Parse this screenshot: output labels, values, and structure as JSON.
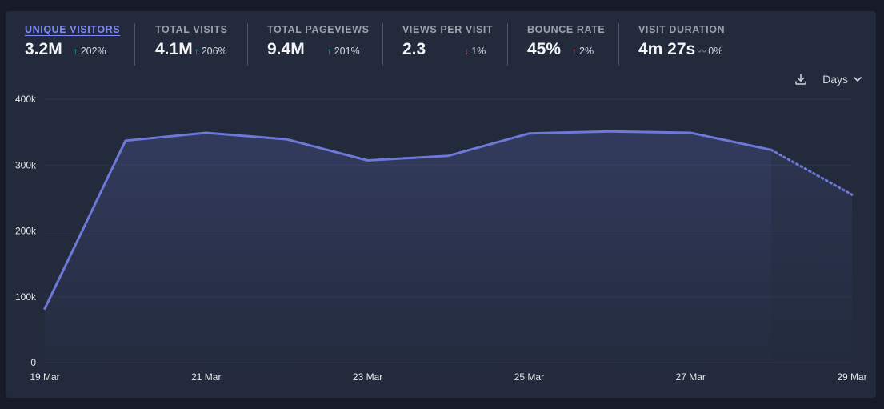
{
  "metrics": [
    {
      "label": "UNIQUE VISITORS",
      "value": "3.2M",
      "change": "202%",
      "direction": "up-green",
      "active": true
    },
    {
      "label": "TOTAL VISITS",
      "value": "4.1M",
      "change": "206%",
      "direction": "up-green",
      "active": false
    },
    {
      "label": "TOTAL PAGEVIEWS",
      "value": "9.4M",
      "change": "201%",
      "direction": "up-green",
      "active": false
    },
    {
      "label": "VIEWS PER VISIT",
      "value": "2.3",
      "change": "1%",
      "direction": "down-red",
      "active": false
    },
    {
      "label": "BOUNCE RATE",
      "value": "45%",
      "change": "2%",
      "direction": "up-red",
      "active": false
    },
    {
      "label": "VISIT DURATION",
      "value": "4m 27s",
      "change": "0%",
      "direction": "flat",
      "active": false
    }
  ],
  "toolbar": {
    "download_icon": "download-icon",
    "interval_label": "Days"
  },
  "colors": {
    "line": "#6d78d8",
    "background": "#222a3b",
    "page": "#161b27",
    "up_green": "#10b981",
    "down_red": "#ef4444"
  },
  "chart_data": {
    "type": "area",
    "x": [
      "19 Mar",
      "20 Mar",
      "21 Mar",
      "22 Mar",
      "23 Mar",
      "24 Mar",
      "25 Mar",
      "26 Mar",
      "27 Mar",
      "28 Mar",
      "29 Mar"
    ],
    "x_tick_labels": [
      "19 Mar",
      "21 Mar",
      "23 Mar",
      "25 Mar",
      "27 Mar",
      "29 Mar"
    ],
    "y_tick_labels": [
      "0",
      "100k",
      "200k",
      "300k",
      "400k"
    ],
    "y_ticks": [
      0,
      100000,
      200000,
      300000,
      400000
    ],
    "ylim": [
      0,
      400000
    ],
    "series": [
      {
        "values": [
          82000,
          337000,
          349000,
          339000,
          307000,
          314000,
          348000,
          351000,
          349000,
          323000,
          255000
        ],
        "dashed_from_index": 9
      }
    ],
    "grid": true
  }
}
